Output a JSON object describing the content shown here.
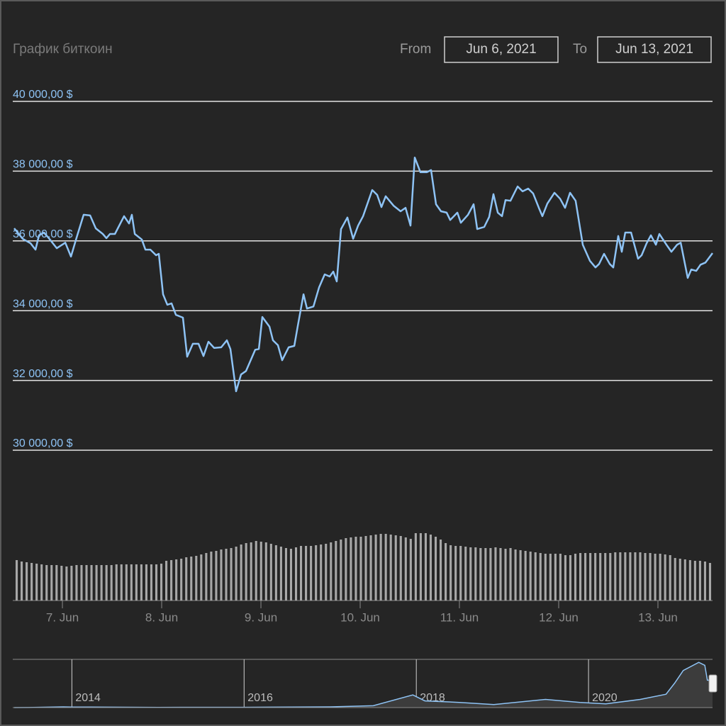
{
  "chart_data": [
    {
      "type": "line",
      "title": "График биткоин",
      "range_selector": {
        "from_label": "From",
        "from": "Jun 6, 2021",
        "to_label": "To",
        "to": "Jun 13, 2021"
      },
      "color": "#8ec3f5",
      "grid": true,
      "xlim": [
        6.514,
        13.55
      ],
      "xticks": [
        {
          "value": 7,
          "label": "7. Jun"
        },
        {
          "value": 8,
          "label": "8. Jun"
        },
        {
          "value": 9,
          "label": "9. Jun"
        },
        {
          "value": 10,
          "label": "10. Jun"
        },
        {
          "value": 11,
          "label": "11. Jun"
        },
        {
          "value": 12,
          "label": "12. Jun"
        },
        {
          "value": 13,
          "label": "13. Jun"
        }
      ],
      "ylim": [
        30000,
        40000
      ],
      "yticks": [
        {
          "value": 30000,
          "label": "30 000,00 $"
        },
        {
          "value": 32000,
          "label": "32 000,00 $"
        },
        {
          "value": 34000,
          "label": "34 000,00 $"
        },
        {
          "value": 36000,
          "label": "36 000,00 $"
        },
        {
          "value": 38000,
          "label": "38 000,00 $"
        },
        {
          "value": 40000,
          "label": "40 000,00 $"
        }
      ],
      "x": [
        6.514,
        6.6,
        6.679,
        6.729,
        6.764,
        6.814,
        6.857,
        6.943,
        7.029,
        7.086,
        7.143,
        7.214,
        7.279,
        7.336,
        7.407,
        7.443,
        7.479,
        7.529,
        7.621,
        7.671,
        7.7,
        7.729,
        7.8,
        7.836,
        7.886,
        7.943,
        7.971,
        8.014,
        8.057,
        8.1,
        8.143,
        8.214,
        8.257,
        8.314,
        8.371,
        8.421,
        8.471,
        8.529,
        8.6,
        8.657,
        8.693,
        8.75,
        8.8,
        8.85,
        8.943,
        8.979,
        9.014,
        9.086,
        9.121,
        9.171,
        9.214,
        9.279,
        9.336,
        9.371,
        9.429,
        9.464,
        9.529,
        9.586,
        9.643,
        9.693,
        9.729,
        9.764,
        9.807,
        9.871,
        9.929,
        9.979,
        10.029,
        10.121,
        10.171,
        10.214,
        10.257,
        10.336,
        10.407,
        10.457,
        10.507,
        10.55,
        10.607,
        10.671,
        10.714,
        10.764,
        10.814,
        10.871,
        10.907,
        10.979,
        11.014,
        11.086,
        11.143,
        11.179,
        11.25,
        11.3,
        11.343,
        11.386,
        11.429,
        11.464,
        11.514,
        11.586,
        11.636,
        11.693,
        11.743,
        11.8,
        11.836,
        11.886,
        11.957,
        12.014,
        12.064,
        12.114,
        12.171,
        12.243,
        12.314,
        12.371,
        12.407,
        12.457,
        12.514,
        12.55,
        12.6,
        12.636,
        12.671,
        12.729,
        12.8,
        12.836,
        12.886,
        12.929,
        12.979,
        13.014,
        13.086,
        13.136,
        13.193,
        13.229,
        13.3,
        13.336,
        13.386,
        13.429,
        13.479,
        13.55
      ],
      "values": [
        36360,
        36060,
        35930,
        35750,
        36160,
        36240,
        36100,
        35790,
        35950,
        35550,
        36100,
        36750,
        36730,
        36360,
        36200,
        36080,
        36200,
        36200,
        36710,
        36500,
        36750,
        36200,
        36040,
        35750,
        35750,
        35590,
        35630,
        34470,
        34170,
        34210,
        33880,
        33800,
        32680,
        33050,
        33050,
        32700,
        33110,
        32930,
        32950,
        33150,
        32900,
        31690,
        32170,
        32270,
        32880,
        32900,
        33820,
        33540,
        33150,
        33010,
        32580,
        32950,
        32990,
        33560,
        34470,
        34060,
        34120,
        34670,
        35040,
        34980,
        35120,
        34840,
        36340,
        36670,
        36060,
        36440,
        36710,
        37460,
        37320,
        36970,
        37280,
        37010,
        36850,
        36950,
        36440,
        38390,
        37970,
        37970,
        38030,
        37050,
        36850,
        36810,
        36600,
        36810,
        36520,
        36750,
        37050,
        36340,
        36400,
        36690,
        37340,
        36810,
        36710,
        37170,
        37150,
        37560,
        37420,
        37500,
        37360,
        36950,
        36710,
        37070,
        37380,
        37210,
        36950,
        37380,
        37150,
        35890,
        35430,
        35240,
        35340,
        35630,
        35340,
        35240,
        36140,
        35690,
        36240,
        36240,
        35490,
        35590,
        35930,
        36160,
        35890,
        36200,
        35890,
        35690,
        35890,
        35950,
        34940,
        35180,
        35140,
        35320,
        35380,
        35650
      ]
    },
    {
      "type": "bar",
      "color": "#a8a8a8",
      "ylim": [
        0,
        100
      ],
      "values": [
        57,
        55,
        54,
        53,
        52,
        51,
        50,
        50,
        50,
        49,
        48,
        49,
        50,
        50,
        50,
        50,
        50,
        50,
        50,
        50,
        51,
        51,
        51,
        51,
        51,
        51,
        51,
        51,
        51,
        52,
        56,
        57,
        58,
        59,
        61,
        62,
        63,
        65,
        67,
        69,
        70,
        72,
        73,
        74,
        76,
        79,
        81,
        82,
        84,
        83,
        82,
        80,
        78,
        76,
        74,
        73,
        75,
        77,
        77,
        77,
        78,
        79,
        80,
        82,
        84,
        86,
        88,
        89,
        90,
        90,
        91,
        92,
        93,
        94,
        94,
        93,
        92,
        91,
        89,
        87,
        95,
        95,
        95,
        93,
        90,
        86,
        81,
        78,
        77,
        77,
        76,
        75,
        75,
        74,
        74,
        74,
        75,
        74,
        73,
        74,
        72,
        71,
        70,
        69,
        68,
        67,
        66,
        66,
        66,
        66,
        64,
        64,
        66,
        67,
        67,
        67,
        67,
        67,
        67,
        67,
        68,
        68,
        68,
        68,
        68,
        68,
        67,
        67,
        66,
        66,
        65,
        64,
        60,
        59,
        58,
        57,
        56,
        56,
        55,
        53
      ]
    },
    {
      "type": "area",
      "color": "#8ec3f5",
      "xlim": [
        2013.33,
        2021.44
      ],
      "xticks": [
        2014,
        2016,
        2018,
        2020
      ],
      "ylim": [
        0,
        65000
      ],
      "x": [
        2013.33,
        2013.5,
        2013.9,
        2014,
        2015,
        2016,
        2017,
        2017.5,
        2017.96,
        2018.1,
        2018.5,
        2018.9,
        2019.5,
        2019.9,
        2020.2,
        2020.6,
        2020.9,
        2021,
        2021.1,
        2021.28,
        2021.35,
        2021.38,
        2021.44
      ],
      "values": [
        0,
        100,
        1000,
        800,
        250,
        430,
        1000,
        2500,
        17000,
        9000,
        7000,
        4000,
        11000,
        7000,
        5000,
        11000,
        18000,
        33000,
        50000,
        61000,
        57000,
        37000,
        36000
      ]
    }
  ]
}
